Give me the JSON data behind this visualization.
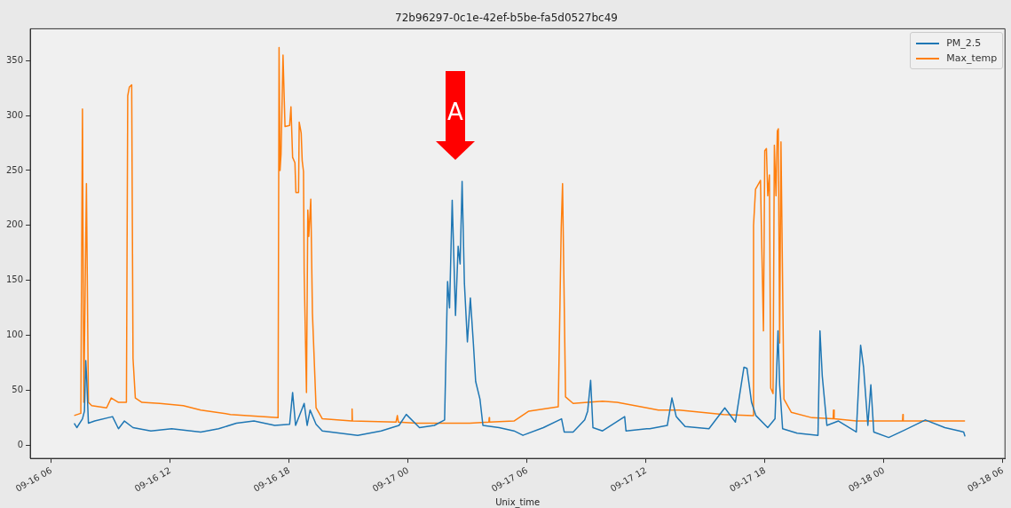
{
  "chart_data": {
    "type": "line",
    "title": "72b96297-0c1e-42ef-b5be-fa5d0527bc49",
    "xlabel": "Unix_time",
    "xlim": [
      "--09-16T04:56",
      "--09-18T06:06"
    ],
    "xticks": [
      {
        "value": "--09-16T06:00",
        "label": "09-16 06"
      },
      {
        "value": "--09-16T12:00",
        "label": "09-16 12"
      },
      {
        "value": "--09-16T18:00",
        "label": "09-16 18"
      },
      {
        "value": "--09-17T00:00",
        "label": "09-17 00"
      },
      {
        "value": "--09-17T06:00",
        "label": "09-17 06"
      },
      {
        "value": "--09-17T12:00",
        "label": "09-17 12"
      },
      {
        "value": "--09-17T18:00",
        "label": "09-17 18"
      },
      {
        "value": "--09-18T00:00",
        "label": "09-18 00"
      },
      {
        "value": "--09-18T06:00",
        "label": "09-18 06"
      }
    ],
    "ylim": [
      -12,
      379
    ],
    "yticks": [
      0,
      50,
      100,
      150,
      200,
      250,
      300,
      350
    ],
    "grid": false,
    "legend": "top right",
    "marker": "none",
    "line_style": "solid",
    "annotations": [
      "A"
    ],
    "series": [
      {
        "name": "PM_2.5",
        "color": "#1f77b4",
        "x": [
          "--09-16T07:09",
          "--09-16T07:17",
          "--09-16T07:34",
          "--09-16T07:40",
          "--09-16T07:44",
          "--09-16T07:47",
          "--09-16T07:52",
          "--09-16T08:11",
          "--09-16T09:05",
          "--09-16T09:23",
          "--09-16T09:41",
          "--09-16T10:07",
          "--09-16T11:01",
          "--09-16T12:04",
          "--09-16T13:32",
          "--09-16T14:26",
          "--09-16T15:20",
          "--09-16T16:13",
          "--09-16T17:16",
          "--09-16T18:01",
          "--09-16T18:10",
          "--09-16T18:19",
          "--09-16T18:45",
          "--09-16T18:54",
          "--09-16T19:03",
          "--09-16T19:21",
          "--09-16T19:40",
          "--09-16T21:27",
          "--09-16T22:38",
          "--09-16T23:32",
          "--09-16T23:54",
          "--09-17T00:34",
          "--09-17T01:19",
          "--09-17T01:50",
          "--09-17T01:59",
          "--09-17T02:05",
          "--09-17T02:13",
          "--09-17T02:23",
          "--09-17T02:31",
          "--09-17T02:37",
          "--09-17T02:43",
          "--09-17T02:50",
          "--09-17T02:59",
          "--09-17T03:08",
          "--09-17T03:17",
          "--09-17T03:24",
          "--09-17T03:37",
          "--09-17T03:46",
          "--09-17T04:35",
          "--09-17T05:20",
          "--09-17T05:47",
          "--09-17T06:49",
          "--09-17T07:44",
          "--09-17T07:52",
          "--09-17T08:19",
          "--09-17T08:54",
          "--09-17T09:03",
          "--09-17T09:12",
          "--09-17T09:19",
          "--09-17T09:48",
          "--09-17T10:55",
          "--09-17T10:59",
          "--09-17T12:02",
          "--09-17T12:11",
          "--09-17T13:04",
          "--09-17T13:18",
          "--09-17T13:31",
          "--09-17T13:58",
          "--09-17T15:10",
          "--09-17T15:58",
          "--09-17T16:30",
          "--09-17T16:56",
          "--09-17T17:05",
          "--09-17T17:19",
          "--09-17T17:32",
          "--09-17T18:08",
          "--09-17T18:30",
          "--09-17T18:39",
          "--09-17T18:44",
          "--09-17T18:53",
          "--09-17T19:37",
          "--09-17T20:40",
          "--09-17T20:46",
          "--09-17T20:53",
          "--09-17T21:07",
          "--09-17T21:42",
          "--09-17T22:36",
          "--09-17T22:49",
          "--09-17T22:58",
          "--09-17T23:11",
          "--09-17T23:20",
          "--09-17T23:29",
          "--09-18T00:14",
          "--09-18T00:50",
          "--09-18T02:05",
          "--09-18T03:04",
          "--09-18T03:48",
          "--09-18T04:01",
          "--09-18T04:05"
        ],
        "values": [
          20,
          16,
          24,
          31,
          77,
          59,
          20,
          22,
          26,
          15,
          22,
          16,
          13,
          15,
          12,
          15,
          20,
          22,
          18,
          19,
          48,
          18,
          38,
          18,
          32,
          19,
          13,
          9,
          13,
          18,
          28,
          16,
          18,
          23,
          149,
          125,
          223,
          118,
          181,
          165,
          240,
          147,
          94,
          134,
          93,
          58,
          42,
          18,
          16,
          13,
          9,
          16,
          24,
          12,
          12,
          23,
          31,
          59,
          16,
          13,
          26,
          13,
          15,
          15,
          18,
          43,
          26,
          17,
          15,
          34,
          21,
          71,
          70,
          39,
          27,
          16,
          24,
          104,
          55,
          15,
          11,
          9,
          104,
          63,
          18,
          22,
          12,
          91,
          71,
          18,
          55,
          12,
          7,
          12,
          23,
          16,
          13,
          12,
          8
        ]
      },
      {
        "name": "Max_temp",
        "color": "#ff7f0e",
        "x": [
          "--09-16T07:09",
          "--09-16T07:29",
          "--09-16T07:34",
          "--09-16T07:38",
          "--09-16T07:46",
          "--09-16T07:52",
          "--09-16T08:02",
          "--09-16T08:47",
          "--09-16T09:01",
          "--09-16T09:23",
          "--09-16T09:47",
          "--09-16T09:51",
          "--09-16T09:56",
          "--09-16T10:03",
          "--09-16T10:07",
          "--09-16T10:14",
          "--09-16T10:34",
          "--09-16T11:28",
          "--09-16T12:39",
          "--09-16T13:32",
          "--09-16T15:02",
          "--09-16T17:26",
          "--09-16T17:29",
          "--09-16T17:32",
          "--09-16T17:35",
          "--09-16T17:41",
          "--09-16T17:47",
          "--09-16T18:01",
          "--09-16T18:05",
          "--09-16T18:10",
          "--09-16T18:17",
          "--09-16T18:20",
          "--09-16T18:28",
          "--09-16T18:30",
          "--09-16T18:36",
          "--09-16T18:39",
          "--09-16T18:43",
          "--09-16T18:45",
          "--09-16T18:52",
          "--09-16T18:56",
          "--09-16T18:59",
          "--09-16T19:05",
          "--09-16T19:10",
          "--09-16T19:21",
          "--09-16T19:40",
          "--09-16T21:09",
          "--09-16T21:10",
          "--09-16T21:11",
          "--09-16T23:23",
          "--09-16T23:27",
          "--09-16T23:30",
          "--09-17T00:25",
          "--09-17T03:06",
          "--09-17T04:04",
          "--09-17T04:05",
          "--09-17T04:06",
          "--09-17T05:20",
          "--09-17T06:05",
          "--09-17T07:34",
          "--09-17T07:43",
          "--09-17T07:47",
          "--09-17T07:56",
          "--09-17T08:19",
          "--09-17T09:03",
          "--09-17T09:48",
          "--09-17T10:32",
          "--09-17T12:02",
          "--09-17T12:37",
          "--09-17T13:40",
          "--09-17T15:54",
          "--09-17T17:23",
          "--09-17T17:25",
          "--09-17T17:31",
          "--09-17T17:46",
          "--09-17T17:55",
          "--09-17T17:59",
          "--09-17T18:04",
          "--09-17T18:08",
          "--09-17T18:13",
          "--09-17T18:17",
          "--09-17T18:24",
          "--09-17T18:28",
          "--09-17T18:33",
          "--09-17T18:37",
          "--09-17T18:40",
          "--09-17T18:44",
          "--09-17T18:48",
          "--09-17T18:57",
          "--09-17T19:19",
          "--09-17T20:22",
          "--09-17T21:26",
          "--09-17T21:27",
          "--09-17T21:29",
          "--09-17T22:36",
          "--09-18T00:56",
          "--09-18T00:57",
          "--09-18T00:58",
          "--09-18T03:04",
          "--09-18T04:05"
        ],
        "values": [
          27,
          29,
          306,
          39,
          238,
          39,
          36,
          34,
          43,
          39,
          39,
          318,
          326,
          328,
          79,
          43,
          39,
          38,
          36,
          32,
          28,
          25,
          362,
          250,
          265,
          355,
          290,
          291,
          308,
          262,
          257,
          230,
          230,
          294,
          284,
          259,
          249,
          157,
          48,
          214,
          190,
          224,
          120,
          34,
          24,
          22,
          33,
          22,
          21,
          27,
          21,
          20,
          20,
          21,
          25,
          21,
          22,
          31,
          35,
          198,
          238,
          44,
          38,
          39,
          40,
          39,
          34,
          32,
          32,
          28,
          27,
          200,
          233,
          241,
          104,
          268,
          270,
          227,
          246,
          52,
          47,
          273,
          227,
          286,
          288,
          93,
          276,
          42,
          30,
          25,
          24,
          32,
          24,
          22,
          22,
          28,
          22,
          22,
          22
        ]
      }
    ]
  }
}
